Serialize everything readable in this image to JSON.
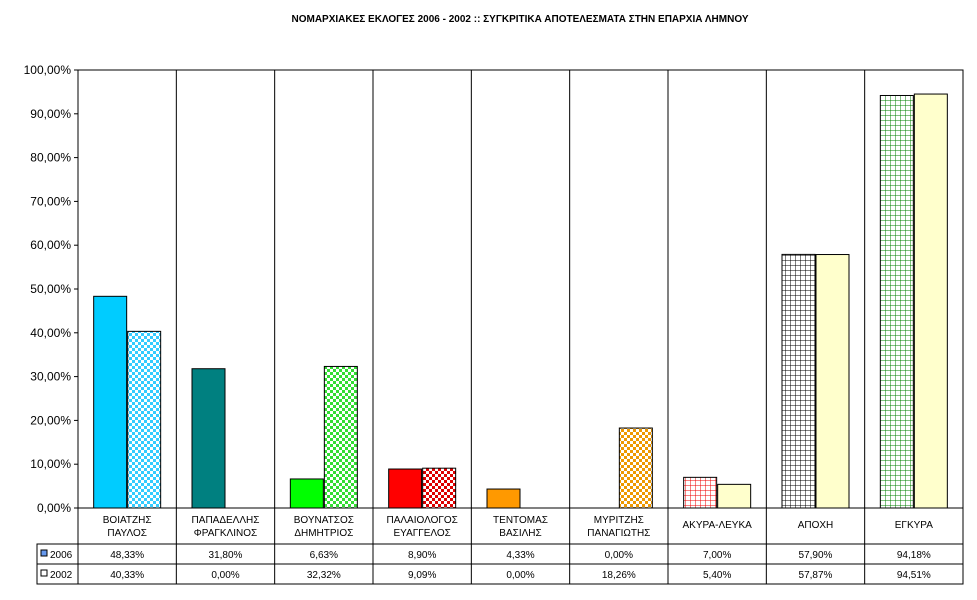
{
  "chart_data": {
    "type": "bar",
    "title": "ΝΟΜΑΡΧΙΑΚΕΣ ΕΚΛΟΓΕΣ 2006 - 2002 :: ΣΥΓΚΡΙΤΙΚΑ ΑΠΟΤΕΛΕΣΜΑΤΑ ΣΤΗΝ ΕΠΑΡΧΙΑ ΛΗΜΝΟΥ",
    "categories": [
      [
        "ΒΟΙΑΤΖΗΣ",
        "ΠΑΥΛΟΣ"
      ],
      [
        "ΠΑΠΑΔΕΛΛΗΣ",
        "ΦΡΑΓΚΛΙΝΟΣ"
      ],
      [
        "ΒΟΥΝΑΤΣΟΣ",
        "ΔΗΜΗΤΡΙΟΣ"
      ],
      [
        "ΠΑΛΑΙΟΛΟΓΟΣ",
        "ΕΥΑΓΓΕΛΟΣ"
      ],
      [
        "ΤΕΝΤΟΜΑΣ",
        "ΒΑΣΙΛΗΣ"
      ],
      [
        "ΜΥΡΙΤΖΗΣ",
        "ΠΑΝΑΓΙΩΤΗΣ"
      ],
      [
        "ΑΚΥΡΑ-ΛΕΥΚΑ"
      ],
      [
        "ΑΠΟΧΗ"
      ],
      [
        "ΕΓΚΥΡΑ"
      ]
    ],
    "series": [
      {
        "name": "2006",
        "values": [
          48.33,
          31.8,
          6.63,
          8.9,
          4.33,
          0.0,
          7.0,
          57.9,
          94.18
        ],
        "labels": [
          "48,33%",
          "31,80%",
          "6,63%",
          "8,90%",
          "4,33%",
          "0,00%",
          "7,00%",
          "57,90%",
          "94,18%"
        ]
      },
      {
        "name": "2002",
        "values": [
          40.33,
          0.0,
          32.32,
          9.09,
          0.0,
          18.26,
          5.4,
          57.87,
          94.51
        ],
        "labels": [
          "40,33%",
          "0,00%",
          "32,32%",
          "9,09%",
          "0,00%",
          "18,26%",
          "5,40%",
          "57,87%",
          "94,51%"
        ]
      }
    ],
    "colors_2006": [
      "#00ccff",
      "#008080",
      "#00ff00",
      "#ff0000",
      "#ff9900",
      "#ff9900",
      "#ffffff",
      "#ffffff",
      "#ffffff"
    ],
    "patterns_2006": [
      "solid",
      "solid",
      "solid",
      "solid",
      "solid",
      "solid",
      "grid-red",
      "grid-black",
      "grid-green"
    ],
    "colors_2002": [
      "#33ccff",
      "#008080",
      "#33cc33",
      "#cc0000",
      "#ff9900",
      "#ff9900",
      "#ffffcc",
      "#ffffcc",
      "#ffffcc"
    ],
    "patterns_2002": [
      "checker-cyan",
      "checker-cyan",
      "checker-green",
      "checker-red",
      "checker-orange",
      "checker-orange",
      "solid",
      "solid",
      "solid"
    ],
    "ylim": [
      0,
      100
    ],
    "yticks": [
      "0,00%",
      "10,00%",
      "20,00%",
      "30,00%",
      "40,00%",
      "50,00%",
      "60,00%",
      "70,00%",
      "80,00%",
      "90,00%",
      "100,00%"
    ],
    "xlabel": "",
    "ylabel": "",
    "legend": "data-table"
  }
}
